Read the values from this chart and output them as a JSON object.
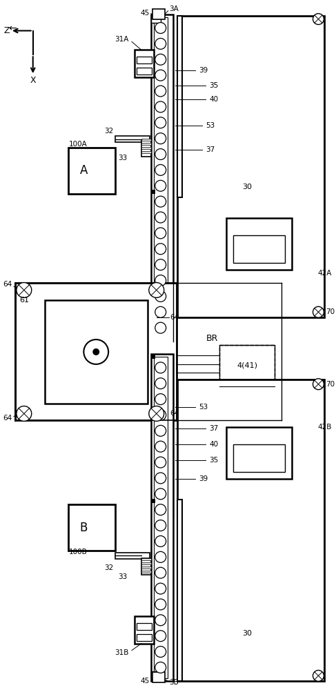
{
  "bg_color": "#ffffff",
  "lc": "#000000",
  "fig_width": 4.87,
  "fig_height": 10.0,
  "dpi": 100,
  "xlim": [
    0,
    487
  ],
  "ylim": [
    0,
    1000
  ]
}
